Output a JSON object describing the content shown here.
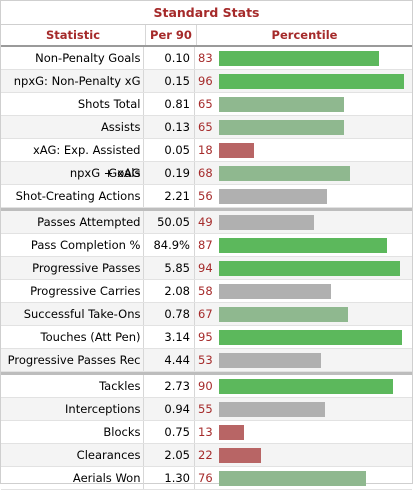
{
  "table": {
    "caption": "Standard Stats",
    "headers": {
      "statistic": "Statistic",
      "per90": "Per 90",
      "percentile": "Percentile"
    },
    "colors": {
      "high": "#5cb85c",
      "medium": "#8fb88f",
      "neutral": "#b0b0b0",
      "low": "#b86565"
    },
    "groups": [
      [
        {
          "statistic": "Non-Penalty Goals",
          "per90": "0.10",
          "percentile": 83
        },
        {
          "statistic": "npxG: Non-Penalty xG",
          "per90": "0.15",
          "percentile": 96
        },
        {
          "statistic": "Shots Total",
          "per90": "0.81",
          "percentile": 65
        },
        {
          "statistic": "Assists",
          "per90": "0.13",
          "percentile": 65
        },
        {
          "statistic": "xAG: Exp. Assisted Goals",
          "per90": "0.05",
          "percentile": 18
        },
        {
          "statistic": "npxG + xAG",
          "per90": "0.19",
          "percentile": 68
        },
        {
          "statistic": "Shot-Creating Actions",
          "per90": "2.21",
          "percentile": 56
        }
      ],
      [
        {
          "statistic": "Passes Attempted",
          "per90": "50.05",
          "percentile": 49
        },
        {
          "statistic": "Pass Completion %",
          "per90": "84.9%",
          "percentile": 87
        },
        {
          "statistic": "Progressive Passes",
          "per90": "5.85",
          "percentile": 94
        },
        {
          "statistic": "Progressive Carries",
          "per90": "2.08",
          "percentile": 58
        },
        {
          "statistic": "Successful Take-Ons",
          "per90": "0.78",
          "percentile": 67
        },
        {
          "statistic": "Touches (Att Pen)",
          "per90": "3.14",
          "percentile": 95
        },
        {
          "statistic": "Progressive Passes Rec",
          "per90": "4.44",
          "percentile": 53
        }
      ],
      [
        {
          "statistic": "Tackles",
          "per90": "2.73",
          "percentile": 90
        },
        {
          "statistic": "Interceptions",
          "per90": "0.94",
          "percentile": 55
        },
        {
          "statistic": "Blocks",
          "per90": "0.75",
          "percentile": 13
        },
        {
          "statistic": "Clearances",
          "per90": "2.05",
          "percentile": 22
        },
        {
          "statistic": "Aerials Won",
          "per90": "1.30",
          "percentile": 76
        }
      ]
    ]
  }
}
